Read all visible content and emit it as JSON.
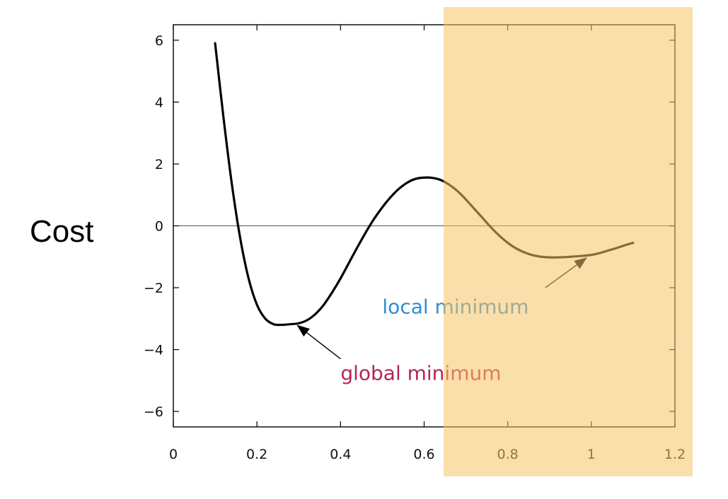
{
  "chart_data": {
    "type": "line",
    "ylabel": "Cost",
    "xlabel": "",
    "xlim": [
      0,
      1.2
    ],
    "ylim": [
      -6.5,
      6.5
    ],
    "x_ticks": [
      {
        "value": 0,
        "label": "0"
      },
      {
        "value": 0.2,
        "label": "0.2"
      },
      {
        "value": 0.4,
        "label": "0.4"
      },
      {
        "value": 0.6,
        "label": "0.6"
      },
      {
        "value": 0.8,
        "label": "0.8"
      },
      {
        "value": 1.0,
        "label": "1"
      },
      {
        "value": 1.2,
        "label": "1.2"
      }
    ],
    "y_ticks": [
      {
        "value": 6,
        "label": "6"
      },
      {
        "value": 4,
        "label": "4"
      },
      {
        "value": 2,
        "label": "2"
      },
      {
        "value": 0,
        "label": "0"
      },
      {
        "value": -2,
        "label": "−2"
      },
      {
        "value": -4,
        "label": "−4"
      },
      {
        "value": -6,
        "label": "−6"
      }
    ],
    "series": [
      {
        "color": "#000000",
        "x": [
          0.1,
          0.12,
          0.14,
          0.16,
          0.18,
          0.2,
          0.22,
          0.24,
          0.26,
          0.28,
          0.3,
          0.32,
          0.34,
          0.36,
          0.38,
          0.4,
          0.42,
          0.44,
          0.46,
          0.48,
          0.5,
          0.52,
          0.54,
          0.56,
          0.58,
          0.6,
          0.62,
          0.64,
          0.66,
          0.68,
          0.7,
          0.72,
          0.74,
          0.76,
          0.78,
          0.8,
          0.82,
          0.84,
          0.86,
          0.88,
          0.9,
          0.92,
          0.94,
          0.96,
          0.98,
          1.0,
          1.02,
          1.04,
          1.06,
          1.08,
          1.1
        ],
        "y": [
          5.9,
          3.5,
          1.35,
          -0.4,
          -1.7,
          -2.55,
          -3.0,
          -3.18,
          -3.2,
          -3.18,
          -3.15,
          -3.05,
          -2.85,
          -2.55,
          -2.15,
          -1.7,
          -1.2,
          -0.7,
          -0.22,
          0.22,
          0.6,
          0.93,
          1.2,
          1.4,
          1.52,
          1.56,
          1.55,
          1.48,
          1.33,
          1.12,
          0.85,
          0.55,
          0.25,
          -0.05,
          -0.32,
          -0.55,
          -0.73,
          -0.86,
          -0.95,
          -1.0,
          -1.02,
          -1.02,
          -1.01,
          -0.99,
          -0.97,
          -0.94,
          -0.88,
          -0.8,
          -0.72,
          -0.63,
          -0.55
        ]
      }
    ],
    "annotations": [
      {
        "text": "global minimum",
        "color": "#b5245a",
        "text_x": 0.4,
        "text_y": -4.75,
        "arrow_from_x": 0.4,
        "arrow_from_y": -4.3,
        "arrow_to_x": 0.295,
        "arrow_to_y": -3.2
      },
      {
        "text": "local minimum",
        "color": "#2a8fd6",
        "text_x": 0.5,
        "text_y": -2.6,
        "arrow_from_x": 0.89,
        "arrow_from_y": -2.0,
        "arrow_to_x": 0.99,
        "arrow_to_y": -1.02
      }
    ],
    "grid": false,
    "zero_line": true,
    "highlight": {
      "color": "#f7c465",
      "opacity": 0.55
    }
  }
}
